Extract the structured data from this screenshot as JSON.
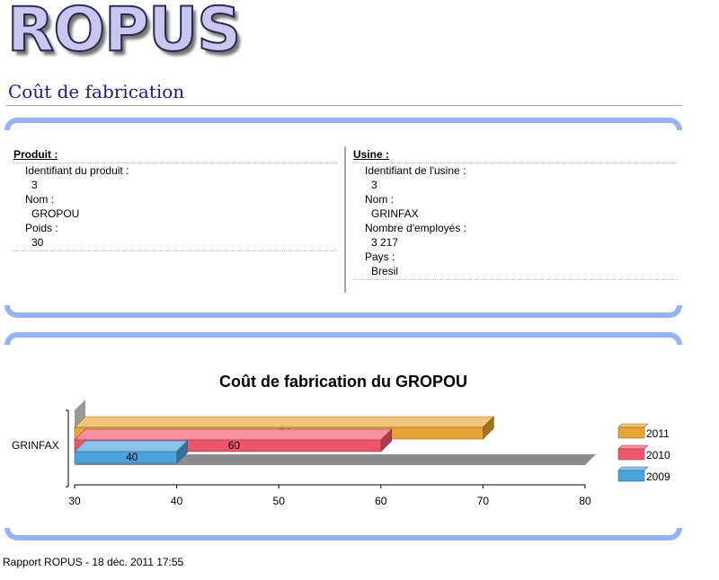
{
  "app": {
    "logo_text": "ROPUS"
  },
  "page": {
    "title": "Coût de fabrication"
  },
  "produit": {
    "heading": "Produit :",
    "fields": [
      {
        "label": "Identifiant du produit :",
        "value": "3"
      },
      {
        "label": "Nom :",
        "value": "GROPOU"
      },
      {
        "label": "Poids :",
        "value": "30"
      }
    ]
  },
  "usine": {
    "heading": "Usine :",
    "fields": [
      {
        "label": "Identifiant de l'usine :",
        "value": "3"
      },
      {
        "label": "Nom :",
        "value": "GRINFAX"
      },
      {
        "label": "Nombre d'employés :",
        "value": "3 217"
      },
      {
        "label": "Pays :",
        "value": "Bresil"
      }
    ]
  },
  "chart_data": {
    "type": "bar",
    "orientation": "horizontal",
    "title": "Coût de fabrication du GROPOU",
    "categories": [
      "GRINFAX"
    ],
    "xlim": [
      30,
      80
    ],
    "xticks": [
      "30",
      "40",
      "50",
      "60",
      "70",
      "80"
    ],
    "series": [
      {
        "name": "2011",
        "values": [
          70
        ],
        "color": "#e6a535"
      },
      {
        "name": "2010",
        "values": [
          60
        ],
        "color": "#f0566b"
      },
      {
        "name": "2009",
        "values": [
          40
        ],
        "color": "#4aa3da"
      }
    ],
    "data_labels": true,
    "legend_position": "right",
    "style": "3d"
  },
  "footer": {
    "text": "Rapport ROPUS - 18 déc. 2011 17:55"
  }
}
